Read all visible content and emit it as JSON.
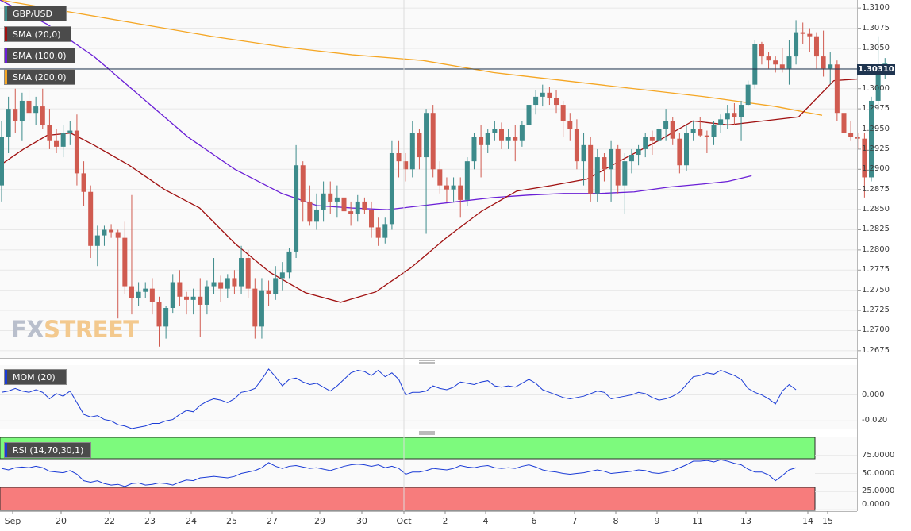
{
  "chart_data": {
    "type": "candlestick",
    "symbol": "GBP/USD",
    "current_price": "1.30310",
    "indicators": [
      {
        "name": "SMA (20,0)",
        "color": "#a01010"
      },
      {
        "name": "SMA (100,0)",
        "color": "#6a1fd6"
      },
      {
        "name": "SMA (200,0)",
        "color": "#f5a623"
      }
    ],
    "ylim": [
      1.2665,
      1.311
    ],
    "y_ticks": [
      "1.3100",
      "1.3075",
      "1.3050",
      "1.3025",
      "1.3000",
      "1.2975",
      "1.2950",
      "1.2925",
      "1.2900",
      "1.2875",
      "1.2850",
      "1.2825",
      "1.2800",
      "1.2775",
      "1.2750",
      "1.2725",
      "1.2700",
      "1.2675"
    ],
    "x_ticks": [
      "Sep",
      "20",
      "22",
      "23",
      "24",
      "25",
      "27",
      "29",
      "30",
      "Oct",
      "2",
      "4",
      "6",
      "7",
      "8",
      "9",
      "11",
      "13",
      "14",
      "15"
    ],
    "up_color": "#3d8b8b",
    "down_color": "#d05b50",
    "candles": [
      [
        1.288,
        1.296,
        1.286,
        1.294
      ],
      [
        1.294,
        1.299,
        1.292,
        1.2975
      ],
      [
        1.2975,
        1.3,
        1.2945,
        1.296
      ],
      [
        1.296,
        1.2995,
        1.2935,
        1.2985
      ],
      [
        1.2985,
        1.2998,
        1.296,
        1.297
      ],
      [
        1.297,
        1.299,
        1.2955,
        1.2978
      ],
      [
        1.2978,
        1.3,
        1.295,
        1.2955
      ],
      [
        1.2955,
        1.2975,
        1.2925,
        1.2935
      ],
      [
        1.2935,
        1.295,
        1.292,
        1.2928
      ],
      [
        1.2928,
        1.2955,
        1.2915,
        1.2945
      ],
      [
        1.2945,
        1.296,
        1.293,
        1.2948
      ],
      [
        1.2948,
        1.2968,
        1.288,
        1.2895
      ],
      [
        1.2895,
        1.291,
        1.2855,
        1.2872
      ],
      [
        1.2872,
        1.288,
        1.279,
        1.2805
      ],
      [
        1.2805,
        1.283,
        1.278,
        1.2818
      ],
      [
        1.2818,
        1.283,
        1.2805,
        1.2825
      ],
      [
        1.2825,
        1.2832,
        1.2815,
        1.2822
      ],
      [
        1.2822,
        1.2825,
        1.2715,
        1.2815
      ],
      [
        1.2815,
        1.2835,
        1.2745,
        1.2755
      ],
      [
        1.2755,
        1.2868,
        1.272,
        1.274
      ],
      [
        1.274,
        1.276,
        1.273,
        1.2748
      ],
      [
        1.2748,
        1.276,
        1.274,
        1.2752
      ],
      [
        1.2752,
        1.2765,
        1.272,
        1.2735
      ],
      [
        1.2735,
        1.2742,
        1.268,
        1.2705
      ],
      [
        1.2705,
        1.273,
        1.269,
        1.2728
      ],
      [
        1.2728,
        1.277,
        1.2722,
        1.276
      ],
      [
        1.276,
        1.2775,
        1.273,
        1.2742
      ],
      [
        1.2742,
        1.2748,
        1.272,
        1.2738
      ],
      [
        1.2738,
        1.2752,
        1.272,
        1.2742
      ],
      [
        1.2742,
        1.2765,
        1.2692,
        1.2732
      ],
      [
        1.2732,
        1.2762,
        1.272,
        1.2755
      ],
      [
        1.2755,
        1.279,
        1.2745,
        1.276
      ],
      [
        1.276,
        1.2768,
        1.2735,
        1.2752
      ],
      [
        1.2752,
        1.277,
        1.274,
        1.2765
      ],
      [
        1.2765,
        1.2775,
        1.2745,
        1.2755
      ],
      [
        1.2755,
        1.2805,
        1.2745,
        1.279
      ],
      [
        1.279,
        1.28,
        1.274,
        1.2752
      ],
      [
        1.2752,
        1.2765,
        1.269,
        1.2705
      ],
      [
        1.2705,
        1.2765,
        1.269,
        1.275
      ],
      [
        1.275,
        1.2762,
        1.273,
        1.2745
      ],
      [
        1.2745,
        1.278,
        1.2738,
        1.2765
      ],
      [
        1.2765,
        1.2785,
        1.275,
        1.2772
      ],
      [
        1.2772,
        1.2802,
        1.2765,
        1.2798
      ],
      [
        1.2798,
        1.293,
        1.279,
        1.2905
      ],
      [
        1.2905,
        1.291,
        1.2835,
        1.286
      ],
      [
        1.286,
        1.288,
        1.283,
        1.2835
      ],
      [
        1.2835,
        1.287,
        1.2825,
        1.285
      ],
      [
        1.285,
        1.2885,
        1.2835,
        1.287
      ],
      [
        1.287,
        1.2885,
        1.2845,
        1.286
      ],
      [
        1.286,
        1.288,
        1.284,
        1.2865
      ],
      [
        1.2865,
        1.287,
        1.284,
        1.2848
      ],
      [
        1.2848,
        1.286,
        1.283,
        1.2845
      ],
      [
        1.2845,
        1.2868,
        1.2835,
        1.286
      ],
      [
        1.286,
        1.2865,
        1.2845,
        1.285
      ],
      [
        1.285,
        1.286,
        1.2815,
        1.2828
      ],
      [
        1.2828,
        1.284,
        1.2805,
        1.2815
      ],
      [
        1.2815,
        1.284,
        1.2808,
        1.2832
      ],
      [
        1.2832,
        1.2935,
        1.2825,
        1.292
      ],
      [
        1.292,
        1.2935,
        1.289,
        1.291
      ],
      [
        1.291,
        1.292,
        1.2885,
        1.29
      ],
      [
        1.29,
        1.296,
        1.289,
        1.2945
      ],
      [
        1.2945,
        1.295,
        1.29,
        1.2915
      ],
      [
        1.2915,
        1.2975,
        1.282,
        1.297
      ],
      [
        1.297,
        1.298,
        1.289,
        1.29
      ],
      [
        1.29,
        1.291,
        1.287,
        1.288
      ],
      [
        1.288,
        1.289,
        1.286,
        1.2875
      ],
      [
        1.2875,
        1.289,
        1.286,
        1.288
      ],
      [
        1.288,
        1.289,
        1.284,
        1.2862
      ],
      [
        1.2862,
        1.2915,
        1.2855,
        1.291
      ],
      [
        1.291,
        1.2945,
        1.29,
        1.294
      ],
      [
        1.294,
        1.2955,
        1.289,
        1.293
      ],
      [
        1.293,
        1.295,
        1.292,
        1.2945
      ],
      [
        1.2945,
        1.296,
        1.2935,
        1.295
      ],
      [
        1.295,
        1.2958,
        1.2925,
        1.2935
      ],
      [
        1.2935,
        1.295,
        1.2925,
        1.294
      ],
      [
        1.294,
        1.2955,
        1.291,
        1.2935
      ],
      [
        1.2935,
        1.296,
        1.2928,
        1.2955
      ],
      [
        1.2955,
        1.2985,
        1.2945,
        1.298
      ],
      [
        1.298,
        1.2998,
        1.2968,
        1.299
      ],
      [
        1.299,
        1.3005,
        1.2978,
        1.2995
      ],
      [
        1.2995,
        1.3002,
        1.298,
        1.2988
      ],
      [
        1.2988,
        1.2998,
        1.297,
        1.298
      ],
      [
        1.298,
        1.2985,
        1.294,
        1.296
      ],
      [
        1.296,
        1.297,
        1.2935,
        1.295
      ],
      [
        1.295,
        1.2962,
        1.29,
        1.291
      ],
      [
        1.291,
        1.2945,
        1.288,
        1.293
      ],
      [
        1.293,
        1.294,
        1.286,
        1.287
      ],
      [
        1.287,
        1.2925,
        1.286,
        1.2915
      ],
      [
        1.2915,
        1.292,
        1.2885,
        1.29
      ],
      [
        1.29,
        1.2935,
        1.286,
        1.2925
      ],
      [
        1.2925,
        1.293,
        1.287,
        1.288
      ],
      [
        1.288,
        1.292,
        1.2845,
        1.291
      ],
      [
        1.291,
        1.2925,
        1.2895,
        1.2918
      ],
      [
        1.2918,
        1.293,
        1.2905,
        1.2925
      ],
      [
        1.2925,
        1.2945,
        1.2915,
        1.294
      ],
      [
        1.294,
        1.2948,
        1.2918,
        1.2935
      ],
      [
        1.2935,
        1.2955,
        1.293,
        1.295
      ],
      [
        1.295,
        1.2975,
        1.2935,
        1.296
      ],
      [
        1.296,
        1.2965,
        1.293,
        1.2938
      ],
      [
        1.2938,
        1.2945,
        1.2895,
        1.2905
      ],
      [
        1.2905,
        1.2955,
        1.2898,
        1.2945
      ],
      [
        1.2945,
        1.296,
        1.2935,
        1.295
      ],
      [
        1.295,
        1.2965,
        1.294,
        1.2942
      ],
      [
        1.2942,
        1.2948,
        1.292,
        1.294
      ],
      [
        1.294,
        1.296,
        1.293,
        1.2955
      ],
      [
        1.2955,
        1.2968,
        1.2945,
        1.2962
      ],
      [
        1.2962,
        1.298,
        1.295,
        1.297
      ],
      [
        1.297,
        1.2982,
        1.2955,
        1.2965
      ],
      [
        1.2965,
        1.2985,
        1.2935,
        1.298
      ],
      [
        1.298,
        1.301,
        1.2978,
        1.3005
      ],
      [
        1.3005,
        1.306,
        1.3,
        1.3055
      ],
      [
        1.3055,
        1.3058,
        1.303,
        1.304
      ],
      [
        1.304,
        1.3045,
        1.3025,
        1.3035
      ],
      [
        1.3035,
        1.304,
        1.302,
        1.303
      ],
      [
        1.303,
        1.305,
        1.302,
        1.3025
      ],
      [
        1.3025,
        1.306,
        1.3005,
        1.304
      ],
      [
        1.304,
        1.3085,
        1.303,
        1.307
      ],
      [
        1.307,
        1.3082,
        1.3055,
        1.3068
      ],
      [
        1.3068,
        1.3075,
        1.3045,
        1.3065
      ],
      [
        1.3065,
        1.307,
        1.3025,
        1.304
      ],
      [
        1.304,
        1.3072,
        1.3015,
        1.3025
      ],
      [
        1.3025,
        1.3045,
        1.3005,
        1.303
      ],
      [
        1.303,
        1.3035,
        1.296,
        1.297
      ],
      [
        1.297,
        1.2975,
        1.292,
        1.2945
      ],
      [
        1.2945,
        1.296,
        1.2935,
        1.294
      ],
      [
        1.294,
        1.2945,
        1.2925,
        1.2938
      ],
      [
        1.2938,
        1.2945,
        1.2865,
        1.289
      ],
      [
        1.289,
        1.299,
        1.2885,
        1.2985
      ],
      [
        1.2985,
        1.3065,
        1.2975,
        1.302
      ],
      [
        1.302,
        1.3038,
        1.3012,
        1.3031
      ]
    ],
    "sma20": [
      1.2905,
      1.2925,
      1.2942,
      1.2945,
      1.293,
      1.2905,
      1.2875,
      1.2852,
      1.2808,
      1.2772,
      1.2747,
      1.2735,
      1.2748,
      1.2778,
      1.2815,
      1.2848,
      1.2873,
      1.288,
      1.2888,
      1.2912,
      1.2935,
      1.296,
      1.2955,
      1.296,
      1.2965,
      1.301,
      1.3012
    ],
    "sma20_x": [
      0,
      20,
      40,
      60,
      80,
      110,
      140,
      170,
      200,
      230,
      260,
      290,
      320,
      350,
      380,
      410,
      440,
      470,
      500,
      530,
      560,
      590,
      620,
      650,
      680,
      710,
      730
    ],
    "sma100": [
      1.311,
      1.308,
      1.304,
      1.299,
      1.294,
      1.29,
      1.287,
      1.2855,
      1.2852,
      1.285,
      1.2855,
      1.286,
      1.2865,
      1.2868,
      1.287,
      1.287,
      1.2872,
      1.2878,
      1.2882,
      1.2885,
      1.2892
    ],
    "sma100_x": [
      0,
      40,
      80,
      120,
      160,
      200,
      240,
      270,
      300,
      330,
      360,
      390,
      420,
      450,
      480,
      510,
      540,
      570,
      600,
      620,
      640
    ],
    "sma200": [
      1.311,
      1.3095,
      1.308,
      1.3065,
      1.3052,
      1.3042,
      1.3035,
      1.302,
      1.301,
      1.3,
      1.299,
      1.2978,
      1.2967
    ],
    "sma200_x": [
      0,
      60,
      120,
      180,
      240,
      300,
      360,
      420,
      480,
      540,
      600,
      660,
      700
    ],
    "momentum": {
      "name": "MOM (20)",
      "y_ticks": [
        "0.000",
        "-0.020"
      ],
      "ylim": [
        -0.026,
        0.023
      ],
      "values": [
        0.002,
        0.003,
        0.005,
        0.003,
        0.002,
        0.004,
        0.002,
        -0.003,
        0.001,
        -0.001,
        0.003,
        -0.006,
        -0.015,
        -0.017,
        -0.016,
        -0.019,
        -0.02,
        -0.023,
        -0.024,
        -0.026,
        -0.025,
        -0.024,
        -0.022,
        -0.022,
        -0.02,
        -0.019,
        -0.015,
        -0.012,
        -0.013,
        -0.008,
        -0.005,
        -0.003,
        -0.004,
        -0.006,
        -0.003,
        0.002,
        0.003,
        0.005,
        0.012,
        0.02,
        0.014,
        0.007,
        0.012,
        0.013,
        0.01,
        0.008,
        0.009,
        0.006,
        0.003,
        0.007,
        0.012,
        0.017,
        0.019,
        0.018,
        0.015,
        0.019,
        0.014,
        0.017,
        0.012,
        0.0,
        0.002,
        0.002,
        0.003,
        0.007,
        0.005,
        0.004,
        0.006,
        0.01,
        0.009,
        0.008,
        0.01,
        0.011,
        0.007,
        0.006,
        0.007,
        0.006,
        0.009,
        0.012,
        0.009,
        0.004,
        0.002,
        0.0,
        -0.002,
        -0.003,
        -0.002,
        -0.001,
        0.001,
        0.003,
        0.002,
        -0.003,
        -0.002,
        -0.001,
        0.0,
        0.002,
        0.001,
        -0.002,
        -0.004,
        -0.003,
        -0.001,
        0.002,
        0.008,
        0.014,
        0.015,
        0.017,
        0.016,
        0.019,
        0.017,
        0.015,
        0.012,
        0.005,
        0.002,
        0.0,
        -0.003,
        -0.007,
        0.003,
        0.008,
        0.004
      ],
      "color": "#1a3bd6"
    },
    "rsi": {
      "name": "RSI (14,70,30,1)",
      "y_ticks": [
        "75.0000",
        "50.0000",
        "25.0000",
        "0.0000"
      ],
      "ylim": [
        0,
        100
      ],
      "overbought": 70,
      "oversold": 30,
      "values": [
        57,
        55,
        58,
        59,
        58,
        60,
        58,
        53,
        52,
        51,
        54,
        49,
        40,
        38,
        40,
        36,
        34,
        35,
        32,
        36,
        37,
        34,
        35,
        37,
        36,
        34,
        38,
        41,
        40,
        44,
        45,
        46,
        45,
        44,
        46,
        50,
        52,
        54,
        58,
        65,
        60,
        57,
        60,
        61,
        59,
        57,
        58,
        56,
        54,
        57,
        60,
        62,
        63,
        62,
        60,
        62,
        58,
        60,
        57,
        49,
        52,
        52,
        54,
        57,
        56,
        55,
        57,
        61,
        59,
        58,
        60,
        61,
        58,
        57,
        58,
        57,
        60,
        62,
        59,
        55,
        53,
        52,
        50,
        49,
        50,
        51,
        53,
        55,
        53,
        50,
        51,
        52,
        53,
        55,
        54,
        51,
        50,
        52,
        54,
        58,
        62,
        67,
        67,
        68,
        66,
        69,
        67,
        64,
        62,
        56,
        52,
        52,
        48,
        40,
        47,
        55,
        58
      ]
    }
  }
}
